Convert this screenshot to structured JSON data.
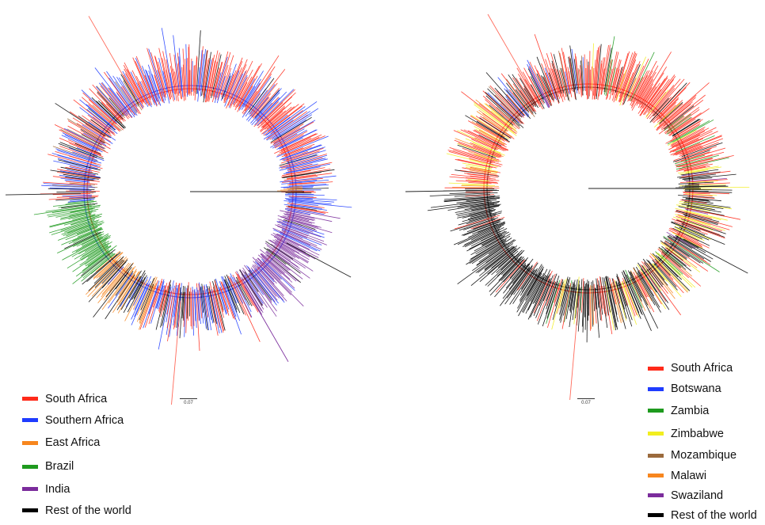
{
  "figure": {
    "left_tree": {
      "scale_label": "0.07"
    },
    "right_tree": {
      "scale_label": "0.07"
    }
  },
  "left_legend": [
    {
      "label": "South Africa",
      "color": "#ff2a1a"
    },
    {
      "label": "Southern Africa",
      "color": "#1f3cff"
    },
    {
      "label": "East Africa",
      "color": "#f7861e"
    },
    {
      "label": "Brazil",
      "color": "#1e9a1e"
    },
    {
      "label": "India",
      "color": "#7b2c9c"
    },
    {
      "label": "Rest of the world",
      "color": "#000000"
    }
  ],
  "right_legend": [
    {
      "label": "South Africa",
      "color": "#ff2a1a"
    },
    {
      "label": "Botswana",
      "color": "#1f3cff"
    },
    {
      "label": "Zambia",
      "color": "#1e9a1e"
    },
    {
      "label": "Zimbabwe",
      "color": "#f2ee1f"
    },
    {
      "label": "Mozambique",
      "color": "#9b6a3c"
    },
    {
      "label": "Malawi",
      "color": "#f7861e"
    },
    {
      "label": "Swaziland",
      "color": "#7b2c9c"
    },
    {
      "label": "Rest of the world",
      "color": "#000000"
    }
  ]
}
